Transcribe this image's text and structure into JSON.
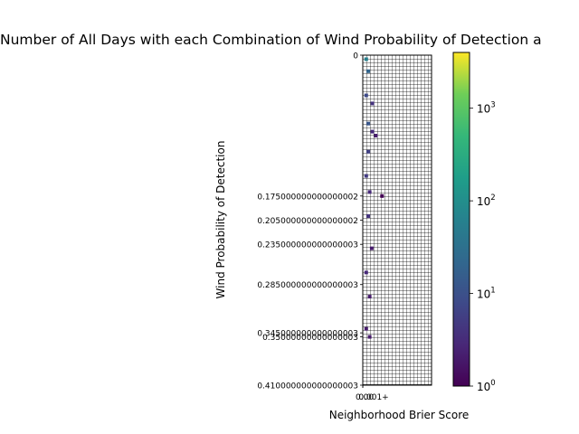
{
  "chart_data": {
    "type": "heatmap",
    "title": "Number of All Days with each Combination of Wind Probability of Detection a",
    "xlabel": "Neighborhood Brier Score",
    "ylabel": "Wind Probability of Detection",
    "x_ticks": [
      "0.00",
      "0.001+"
    ],
    "y_ticks": [
      "0",
      "0.175000000000000002",
      "0.205000000000000002",
      "0.235000000000000003",
      "0.285000000000000003",
      "0.345000000000000003",
      "0.35000000000000003",
      "0.410000000000000003"
    ],
    "x_range": [
      0,
      1
    ],
    "y_range": [
      0,
      0.41
    ],
    "colorbar": {
      "scale": "log",
      "range": [
        1,
        4000
      ],
      "ticks": [
        {
          "base": "10",
          "exp": "0",
          "value": 1
        },
        {
          "base": "10",
          "exp": "1",
          "value": 10
        },
        {
          "base": "10",
          "exp": "2",
          "value": 100
        },
        {
          "base": "10",
          "exp": "3",
          "value": 1000
        }
      ],
      "colormap": "viridis"
    },
    "grid": true,
    "cells": [
      {
        "x": 0.05,
        "y": 0.005,
        "count": 60
      },
      {
        "x": 0.08,
        "y": 0.02,
        "count": 20
      },
      {
        "x": 0.05,
        "y": 0.05,
        "count": 8
      },
      {
        "x": 0.14,
        "y": 0.06,
        "count": 4
      },
      {
        "x": 0.08,
        "y": 0.085,
        "count": 12
      },
      {
        "x": 0.14,
        "y": 0.095,
        "count": 3
      },
      {
        "x": 0.19,
        "y": 0.1,
        "count": 2
      },
      {
        "x": 0.08,
        "y": 0.12,
        "count": 6
      },
      {
        "x": 0.05,
        "y": 0.15,
        "count": 5
      },
      {
        "x": 0.1,
        "y": 0.17,
        "count": 3
      },
      {
        "x": 0.28,
        "y": 0.175,
        "count": 1
      },
      {
        "x": 0.08,
        "y": 0.2,
        "count": 4
      },
      {
        "x": 0.13,
        "y": 0.24,
        "count": 2
      },
      {
        "x": 0.05,
        "y": 0.27,
        "count": 3
      },
      {
        "x": 0.1,
        "y": 0.3,
        "count": 2
      },
      {
        "x": 0.05,
        "y": 0.34,
        "count": 2
      },
      {
        "x": 0.1,
        "y": 0.35,
        "count": 2
      }
    ]
  }
}
